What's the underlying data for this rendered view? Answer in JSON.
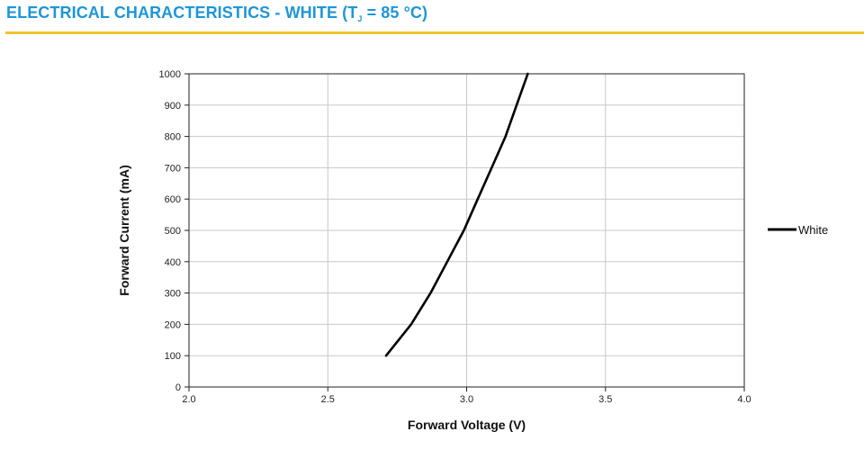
{
  "header": {
    "title_prefix": "ELECTRICAL CHARACTERISTICS - WHITE (T",
    "title_sub": "J",
    "title_suffix": " = 85 °C)"
  },
  "colors": {
    "accent": "#1e96d8",
    "rule": "#f4c430",
    "series": "#000000",
    "grid": "#c8c8c8"
  },
  "chart_data": {
    "type": "line",
    "title": "",
    "xlabel": "Forward Voltage (V)",
    "ylabel": "Forward Current (mA)",
    "xlim": [
      2.0,
      4.0
    ],
    "ylim": [
      0,
      1000
    ],
    "xticks": [
      "2.0",
      "2.5",
      "3.0",
      "3.5",
      "4.0"
    ],
    "yticks": [
      "0",
      "100",
      "200",
      "300",
      "400",
      "500",
      "600",
      "700",
      "800",
      "900",
      "1000"
    ],
    "grid": true,
    "legend_position": "right",
    "series": [
      {
        "name": "White",
        "x": [
          2.71,
          2.8,
          2.87,
          2.93,
          2.99,
          3.04,
          3.09,
          3.14,
          3.18,
          3.22
        ],
        "y": [
          100,
          200,
          300,
          400,
          500,
          600,
          700,
          800,
          900,
          1000
        ]
      }
    ]
  }
}
